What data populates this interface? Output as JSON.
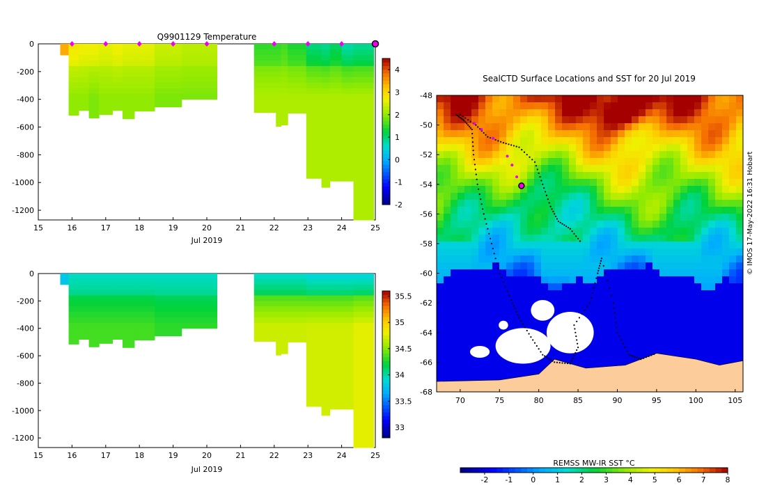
{
  "chart_data": [
    {
      "type": "heatmap",
      "title": "Q9901129  Temperature",
      "xlabel": "Jul 2019",
      "xlim": [
        15,
        25
      ],
      "ylim": [
        -1270,
        0
      ],
      "x_ticks": [
        "15",
        "16",
        "17",
        "18",
        "19",
        "20",
        "21",
        "22",
        "23",
        "24",
        "25"
      ],
      "y_ticks": [
        "0",
        "-200",
        "-400",
        "-600",
        "-800",
        "-1000",
        "-1200"
      ],
      "colorbar": {
        "range": [
          -2,
          4.5
        ],
        "ticks": [
          "4",
          "3",
          "2",
          "1",
          "0",
          "-1",
          "-2"
        ]
      },
      "marker_days": [
        16,
        17,
        18,
        19,
        20,
        22,
        23,
        24
      ],
      "end_marker_day": 25,
      "profiles": [
        {
          "t0": 15.65,
          "t1": 15.9,
          "depth": 80,
          "surface": 3.4,
          "deep": 3.4
        },
        {
          "t0": 15.9,
          "t1": 16.2,
          "depth": 515,
          "surface": 2.8,
          "deep": 2.0
        },
        {
          "t0": 16.2,
          "t1": 16.5,
          "depth": 480,
          "surface": 2.7,
          "deep": 2.0
        },
        {
          "t0": 16.5,
          "t1": 16.8,
          "depth": 535,
          "surface": 2.7,
          "deep": 1.9
        },
        {
          "t0": 16.8,
          "t1": 17.2,
          "depth": 510,
          "surface": 2.6,
          "deep": 2.0
        },
        {
          "t0": 17.2,
          "t1": 17.5,
          "depth": 480,
          "surface": 2.7,
          "deep": 2.0
        },
        {
          "t0": 17.5,
          "t1": 17.85,
          "depth": 540,
          "surface": 2.6,
          "deep": 2.0
        },
        {
          "t0": 17.85,
          "t1": 18.45,
          "depth": 485,
          "surface": 2.6,
          "deep": 2.0
        },
        {
          "t0": 18.45,
          "t1": 19.25,
          "depth": 455,
          "surface": 2.4,
          "deep": 1.9
        },
        {
          "t0": 19.25,
          "t1": 20.3,
          "depth": 400,
          "surface": 2.3,
          "deep": 1.9
        },
        {
          "t0": 21.4,
          "t1": 22.05,
          "depth": 495,
          "surface": 1.5,
          "deep": 2.2
        },
        {
          "t0": 22.05,
          "t1": 22.2,
          "depth": 595,
          "surface": 1.5,
          "deep": 2.2
        },
        {
          "t0": 22.2,
          "t1": 22.4,
          "depth": 585,
          "surface": 1.6,
          "deep": 2.2
        },
        {
          "t0": 22.4,
          "t1": 22.95,
          "depth": 500,
          "surface": 1.4,
          "deep": 2.2
        },
        {
          "t0": 22.95,
          "t1": 23.4,
          "depth": 970,
          "surface": 1.0,
          "deep": 2.2
        },
        {
          "t0": 23.4,
          "t1": 23.65,
          "depth": 1035,
          "surface": 0.9,
          "deep": 2.2
        },
        {
          "t0": 23.65,
          "t1": 24.0,
          "depth": 990,
          "surface": 1.1,
          "deep": 2.2
        },
        {
          "t0": 24.0,
          "t1": 24.35,
          "depth": 990,
          "surface": 0.8,
          "deep": 2.2
        },
        {
          "t0": 24.35,
          "t1": 24.95,
          "depth": 1270,
          "surface": 0.9,
          "deep": 2.2
        }
      ]
    },
    {
      "type": "heatmap",
      "title": "",
      "xlabel": "Jul 2019",
      "xlim": [
        15,
        25
      ],
      "ylim": [
        -1270,
        0
      ],
      "x_ticks": [
        "15",
        "16",
        "17",
        "18",
        "19",
        "20",
        "21",
        "22",
        "23",
        "24",
        "25"
      ],
      "y_ticks": [
        "0",
        "-200",
        "-400",
        "-600",
        "-800",
        "-1000",
        "-1200"
      ],
      "colorbar": {
        "range": [
          32.8,
          35.6
        ],
        "ticks": [
          "35.5",
          "35",
          "34.5",
          "34",
          "33.5",
          "33"
        ]
      },
      "profiles": [
        {
          "t0": 15.65,
          "t1": 15.9,
          "depth": 80,
          "surface": 33.8,
          "deep": 33.8
        },
        {
          "t0": 15.9,
          "t1": 16.2,
          "depth": 515,
          "surface": 33.95,
          "deep": 34.35
        },
        {
          "t0": 16.2,
          "t1": 16.5,
          "depth": 480,
          "surface": 33.95,
          "deep": 34.35
        },
        {
          "t0": 16.5,
          "t1": 16.8,
          "depth": 535,
          "surface": 33.95,
          "deep": 34.35
        },
        {
          "t0": 16.8,
          "t1": 17.2,
          "depth": 510,
          "surface": 33.95,
          "deep": 34.35
        },
        {
          "t0": 17.2,
          "t1": 17.5,
          "depth": 480,
          "surface": 33.95,
          "deep": 34.35
        },
        {
          "t0": 17.5,
          "t1": 17.85,
          "depth": 540,
          "surface": 33.95,
          "deep": 34.35
        },
        {
          "t0": 17.85,
          "t1": 18.45,
          "depth": 485,
          "surface": 33.95,
          "deep": 34.35
        },
        {
          "t0": 18.45,
          "t1": 19.25,
          "depth": 455,
          "surface": 33.95,
          "deep": 34.3
        },
        {
          "t0": 19.25,
          "t1": 20.3,
          "depth": 400,
          "surface": 33.95,
          "deep": 34.3
        },
        {
          "t0": 21.4,
          "t1": 22.05,
          "depth": 495,
          "surface": 33.95,
          "deep": 34.7
        },
        {
          "t0": 22.05,
          "t1": 22.2,
          "depth": 595,
          "surface": 33.95,
          "deep": 34.7
        },
        {
          "t0": 22.2,
          "t1": 22.4,
          "depth": 585,
          "surface": 33.95,
          "deep": 34.7
        },
        {
          "t0": 22.4,
          "t1": 22.95,
          "depth": 500,
          "surface": 33.95,
          "deep": 34.7
        },
        {
          "t0": 22.95,
          "t1": 23.4,
          "depth": 970,
          "surface": 33.9,
          "deep": 34.72
        },
        {
          "t0": 23.4,
          "t1": 23.65,
          "depth": 1035,
          "surface": 33.9,
          "deep": 34.72
        },
        {
          "t0": 23.65,
          "t1": 24.0,
          "depth": 990,
          "surface": 33.9,
          "deep": 34.72
        },
        {
          "t0": 24.0,
          "t1": 24.35,
          "depth": 990,
          "surface": 33.9,
          "deep": 34.72
        },
        {
          "t0": 24.35,
          "t1": 24.95,
          "depth": 1270,
          "surface": 33.9,
          "deep": 34.78
        }
      ]
    },
    {
      "type": "heatmap",
      "title": "SealCTD Surface Locations and SST for 20 Jul 2019",
      "xlim": [
        67,
        106
      ],
      "ylim": [
        -68,
        -48
      ],
      "x_ticks": [
        "70",
        "75",
        "80",
        "85",
        "90",
        "95",
        "100",
        "105"
      ],
      "y_ticks": [
        "-48",
        "-50",
        "-52",
        "-54",
        "-56",
        "-58",
        "-60",
        "-62",
        "-64",
        "-66",
        "-68"
      ],
      "colorbar": {
        "label": "REMSS MW-IR SST °C",
        "range": [
          -3,
          8
        ],
        "ticks": [
          "-2",
          "-1",
          "0",
          "1",
          "2",
          "3",
          "4",
          "5",
          "6",
          "7",
          "8"
        ]
      },
      "track": [
        [
          69.5,
          -49.3
        ],
        [
          70.5,
          -49.7
        ],
        [
          71.5,
          -50.3
        ],
        [
          71.7,
          -52
        ],
        [
          72.2,
          -54
        ],
        [
          73,
          -56
        ],
        [
          74,
          -58
        ],
        [
          75,
          -60
        ],
        [
          76.5,
          -61.8
        ],
        [
          77.5,
          -63
        ],
        [
          79,
          -64.3
        ],
        [
          80.5,
          -65.5
        ],
        [
          82,
          -66
        ],
        [
          84,
          -66.1
        ],
        [
          85,
          -65
        ],
        [
          84.5,
          -63.5
        ],
        [
          86.5,
          -62
        ],
        [
          87.5,
          -60
        ],
        [
          88,
          -59
        ],
        [
          89.5,
          -62
        ],
        [
          90,
          -64
        ],
        [
          91.5,
          -65.5
        ],
        [
          93,
          -65.8
        ],
        [
          95,
          -65.4
        ]
      ],
      "track2": [
        [
          70,
          -49.3
        ],
        [
          72,
          -50
        ],
        [
          73.5,
          -50.8
        ],
        [
          75.5,
          -51.2
        ],
        [
          77.5,
          -51.5
        ],
        [
          79.5,
          -52.5
        ],
        [
          80.5,
          -54
        ],
        [
          81.5,
          -55.5
        ],
        [
          82.5,
          -56.5
        ],
        [
          84,
          -57
        ],
        [
          85.5,
          -58
        ]
      ],
      "recent_positions": [
        [
          71.8,
          -49.9
        ],
        [
          72.7,
          -50.3
        ],
        [
          74.2,
          -50.9
        ],
        [
          76,
          -52.1
        ],
        [
          76.6,
          -52.7
        ],
        [
          77.2,
          -53.5
        ]
      ],
      "current_position": [
        77.8,
        -54.1
      ]
    }
  ],
  "credit": "© IMOS 17-May-2022 16:31 Hobart",
  "colors": {
    "land": "#fdcc9b",
    "ice": "#ffffff",
    "marker": "#ee00ee",
    "track": "#000000"
  }
}
